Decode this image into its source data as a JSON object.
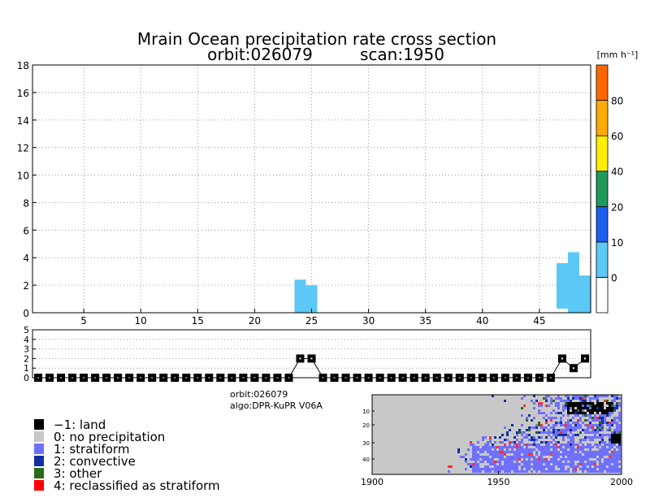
{
  "chart_data": {
    "type": "bar",
    "title": "Mrain Ocean precipitation rate cross section",
    "subtitle_orbit": "orbit:026079",
    "subtitle_scan": "scan:1950",
    "unit": "[mm h⁻¹]",
    "main": {
      "xlim": [
        1,
        49
      ],
      "ylim": [
        0,
        18
      ],
      "x_ticks": [
        5,
        10,
        15,
        20,
        25,
        30,
        35,
        40,
        45
      ],
      "y_ticks": [
        0,
        2,
        4,
        6,
        8,
        10,
        12,
        14,
        16,
        18
      ],
      "grid": "dotted",
      "columns": [
        {
          "x": 24,
          "bottom": 0,
          "top": 2.4,
          "value_class": "0-10"
        },
        {
          "x": 25,
          "bottom": 0,
          "top": 2.0,
          "value_class": "0-10"
        },
        {
          "x": 47,
          "bottom": 0.3,
          "top": 3.6,
          "value_class": "0-10"
        },
        {
          "x": 48,
          "bottom": 0,
          "top": 4.4,
          "value_class": "0-10"
        },
        {
          "x": 49,
          "bottom": 0,
          "top": 2.7,
          "value_class": "0-10"
        }
      ]
    },
    "type_panel": {
      "ylim": [
        0,
        5
      ],
      "y_ticks": [
        0,
        1,
        2,
        3,
        4,
        5
      ],
      "values": [
        0,
        0,
        0,
        0,
        0,
        0,
        0,
        0,
        0,
        0,
        0,
        0,
        0,
        0,
        0,
        0,
        0,
        0,
        0,
        0,
        0,
        0,
        0,
        2,
        2,
        0,
        0,
        0,
        0,
        0,
        0,
        0,
        0,
        0,
        0,
        0,
        0,
        0,
        0,
        0,
        0,
        0,
        0,
        0,
        0,
        0,
        2,
        1,
        2
      ]
    },
    "colorbar": {
      "ticks": [
        "0",
        "10",
        "20",
        "40",
        "60",
        "80"
      ],
      "colors": [
        "#ffffff",
        "#5bc8f5",
        "#1c5ff0",
        "#1f9a5a",
        "#ffee00",
        "#ffaa00",
        "#ff6600"
      ]
    },
    "info_orbit": "orbit:026079",
    "info_algo": "algo:DPR-KuPR V06A",
    "legend": [
      {
        "label": "−1: land",
        "color": "#000000"
      },
      {
        "label": "0: no precipitation",
        "color": "#c8c8c8"
      },
      {
        "label": "1: stratiform",
        "color": "#7070ff"
      },
      {
        "label": "2: convective",
        "color": "#1030a0"
      },
      {
        "label": "3: other",
        "color": "#2a6a1a"
      },
      {
        "label": "4: reclassified as stratiform",
        "color": "#ff0000"
      }
    ],
    "map": {
      "x_ticks": [
        "1900",
        "1950",
        "2000"
      ],
      "y_ticks": [
        "10",
        "20",
        "30",
        "40"
      ]
    }
  }
}
